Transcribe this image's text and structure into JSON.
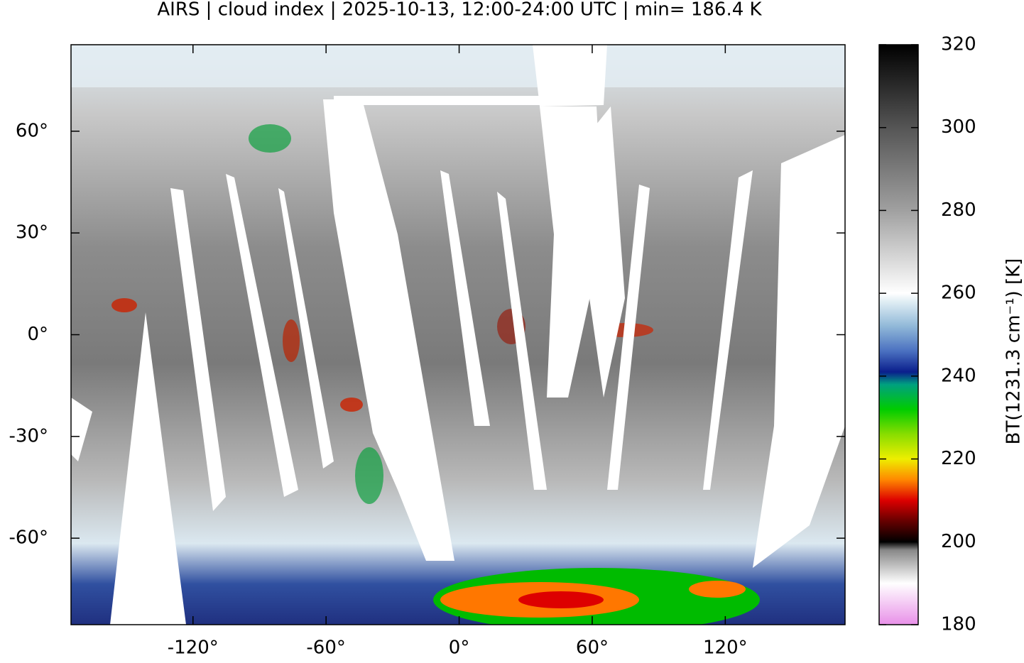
{
  "chart_data": {
    "type": "map",
    "title": "AIRS | cloud index | 2025-10-13, 12:00-24:00 UTC | min= 186.4 K",
    "xlim": [
      -175,
      174
    ],
    "ylim": [
      -85.5,
      85.5
    ],
    "xticks": [
      {
        "value": -120,
        "label": "-120°"
      },
      {
        "value": -60,
        "label": "-60°"
      },
      {
        "value": 0,
        "label": "0°"
      },
      {
        "value": 60,
        "label": "60°"
      },
      {
        "value": 120,
        "label": "120°"
      }
    ],
    "yticks": [
      {
        "value": 60,
        "label": "60°"
      },
      {
        "value": 30,
        "label": "30°"
      },
      {
        "value": 0,
        "label": "0°"
      },
      {
        "value": -30,
        "label": "-30°"
      },
      {
        "value": -60,
        "label": "-60°"
      }
    ],
    "colorbar": {
      "label": "BT(1231.3 cm⁻¹) [K]",
      "lim": [
        180,
        320
      ],
      "ticks": [
        180,
        200,
        220,
        240,
        260,
        280,
        300,
        320
      ],
      "stops": [
        {
          "value": 180,
          "color": "#e890e8"
        },
        {
          "value": 190,
          "color": "#ffffff"
        },
        {
          "value": 198,
          "color": "#888888"
        },
        {
          "value": 200,
          "color": "#000000"
        },
        {
          "value": 205,
          "color": "#660000"
        },
        {
          "value": 210,
          "color": "#dd0000"
        },
        {
          "value": 215,
          "color": "#ff8800"
        },
        {
          "value": 220,
          "color": "#eeee00"
        },
        {
          "value": 226,
          "color": "#88dd00"
        },
        {
          "value": 232,
          "color": "#00cc00"
        },
        {
          "value": 238,
          "color": "#00a080"
        },
        {
          "value": 241,
          "color": "#0a1e8c"
        },
        {
          "value": 246,
          "color": "#4a70c0"
        },
        {
          "value": 252,
          "color": "#90b8d8"
        },
        {
          "value": 258,
          "color": "#e0eef4"
        },
        {
          "value": 260,
          "color": "#ffffff"
        },
        {
          "value": 280,
          "color": "#a0a0a0"
        },
        {
          "value": 300,
          "color": "#555555"
        },
        {
          "value": 320,
          "color": "#000000"
        }
      ]
    }
  }
}
